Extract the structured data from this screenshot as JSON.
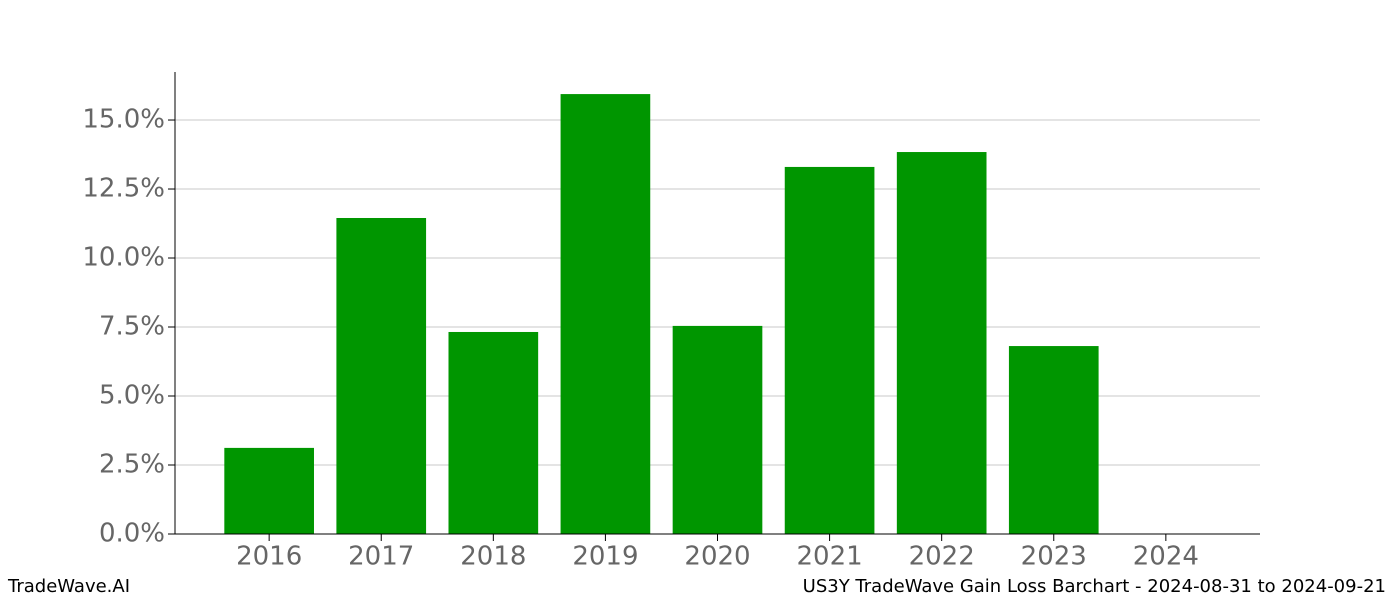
{
  "chart_data": {
    "type": "bar",
    "categories": [
      "2016",
      "2017",
      "2018",
      "2019",
      "2020",
      "2021",
      "2022",
      "2023",
      "2024"
    ],
    "values": [
      3.12,
      11.45,
      7.32,
      15.94,
      7.54,
      13.3,
      13.84,
      6.81,
      0
    ],
    "color": "#009600",
    "ylim": [
      0,
      16.74
    ],
    "yticks": [
      {
        "value": 0,
        "label": "0.0%"
      },
      {
        "value": 2.5,
        "label": "2.5%"
      },
      {
        "value": 5,
        "label": "5.0%"
      },
      {
        "value": 7.5,
        "label": "7.5%"
      },
      {
        "value": 10,
        "label": "10.0%"
      },
      {
        "value": 12.5,
        "label": "12.5%"
      },
      {
        "value": 15,
        "label": "15.0%"
      }
    ],
    "grid": true,
    "footer_left": "TradeWave.AI",
    "footer_right": "US3Y TradeWave Gain Loss Barchart - 2024-08-31 to 2024-09-21"
  }
}
